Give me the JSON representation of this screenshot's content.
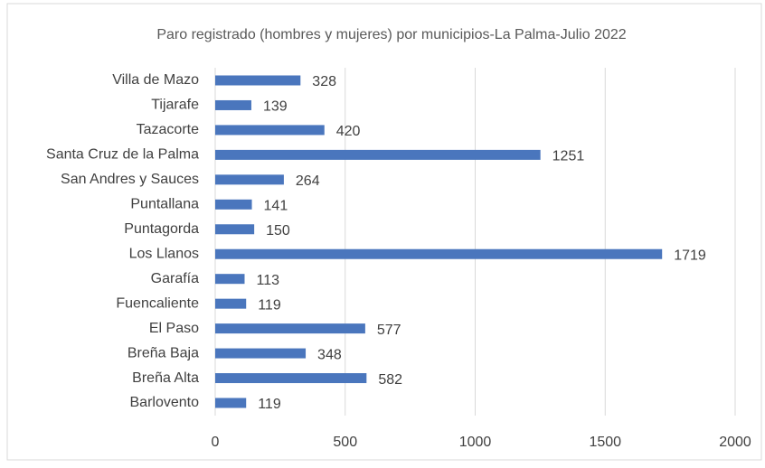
{
  "chart_data": {
    "type": "barh",
    "title": "Paro registrado (hombres y mujeres) por municipios-La Palma-Julio 2022",
    "categories": [
      "Villa de Mazo",
      "Tijarafe",
      "Tazacorte",
      "Santa Cruz de la Palma",
      "San Andres y Sauces",
      "Puntallana",
      "Puntagorda",
      "Los Llanos",
      "Garafía",
      "Fuencaliente",
      "El Paso",
      "Breña Baja",
      "Breña Alta",
      "Barlovento"
    ],
    "values": [
      328,
      139,
      420,
      1251,
      264,
      141,
      150,
      1719,
      113,
      119,
      577,
      348,
      582,
      119
    ],
    "color": "#4a76bd",
    "xlim": [
      0,
      2000
    ],
    "xticks": [
      0,
      500,
      1000,
      1500,
      2000
    ],
    "grid": true
  }
}
